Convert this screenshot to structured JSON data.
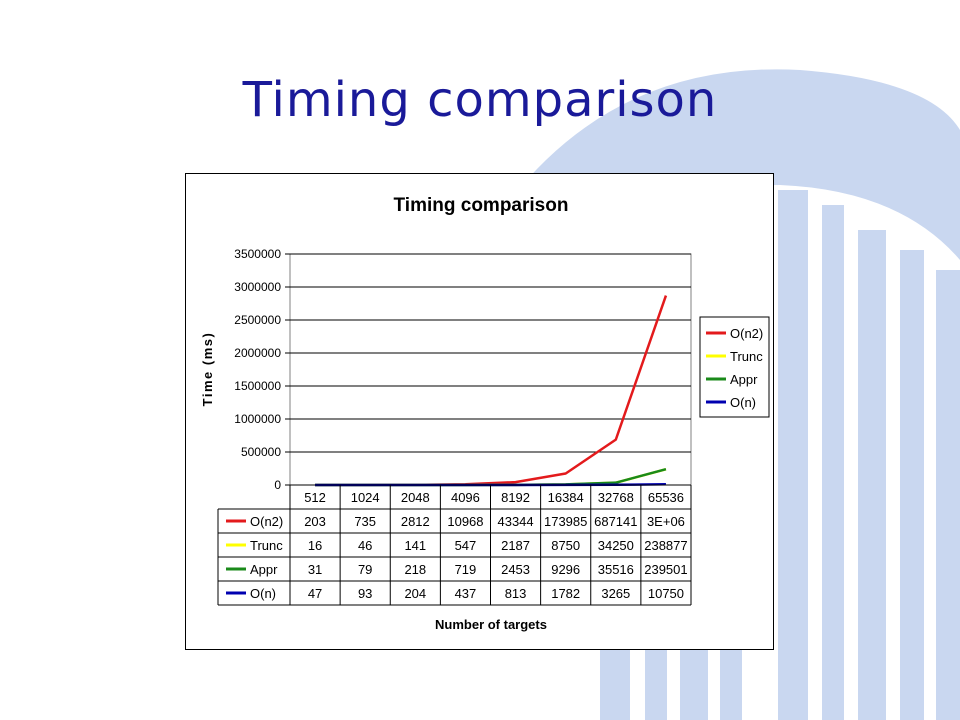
{
  "slide": {
    "title": "Timing comparison"
  },
  "chart_data": {
    "type": "line",
    "title": "Timing comparison",
    "xlabel": "Number of targets",
    "ylabel": "Time (ms)",
    "categories": [
      "512",
      "1024",
      "2048",
      "4096",
      "8192",
      "16384",
      "32768",
      "65536"
    ],
    "ylim": [
      0,
      3500000
    ],
    "y_ticks": [
      0,
      500000,
      1000000,
      1500000,
      2000000,
      2500000,
      3000000,
      3500000
    ],
    "grid": true,
    "legend_position": "right",
    "series": [
      {
        "name": "O(n2)",
        "color": "#e31a1c",
        "values": [
          203,
          735,
          2812,
          10968,
          43344,
          173985,
          687141,
          2870000
        ],
        "table_values": [
          "203",
          "735",
          "2812",
          "10968",
          "43344",
          "173985",
          "687141",
          "3E+06"
        ]
      },
      {
        "name": "Trunc",
        "color": "#ffff00",
        "values": [
          16,
          46,
          141,
          547,
          2187,
          8750,
          34250,
          238877
        ],
        "table_values": [
          "16",
          "46",
          "141",
          "547",
          "2187",
          "8750",
          "34250",
          "238877"
        ]
      },
      {
        "name": "Appr",
        "color": "#1a8a1a",
        "values": [
          31,
          79,
          218,
          719,
          2453,
          9296,
          35516,
          239501
        ],
        "table_values": [
          "31",
          "79",
          "218",
          "719",
          "2453",
          "9296",
          "35516",
          "239501"
        ]
      },
      {
        "name": "O(n)",
        "color": "#0000b0",
        "values": [
          47,
          93,
          204,
          437,
          813,
          1782,
          3265,
          10750
        ],
        "table_values": [
          "47",
          "93",
          "204",
          "437",
          "813",
          "1782",
          "3265",
          "10750"
        ]
      }
    ]
  }
}
